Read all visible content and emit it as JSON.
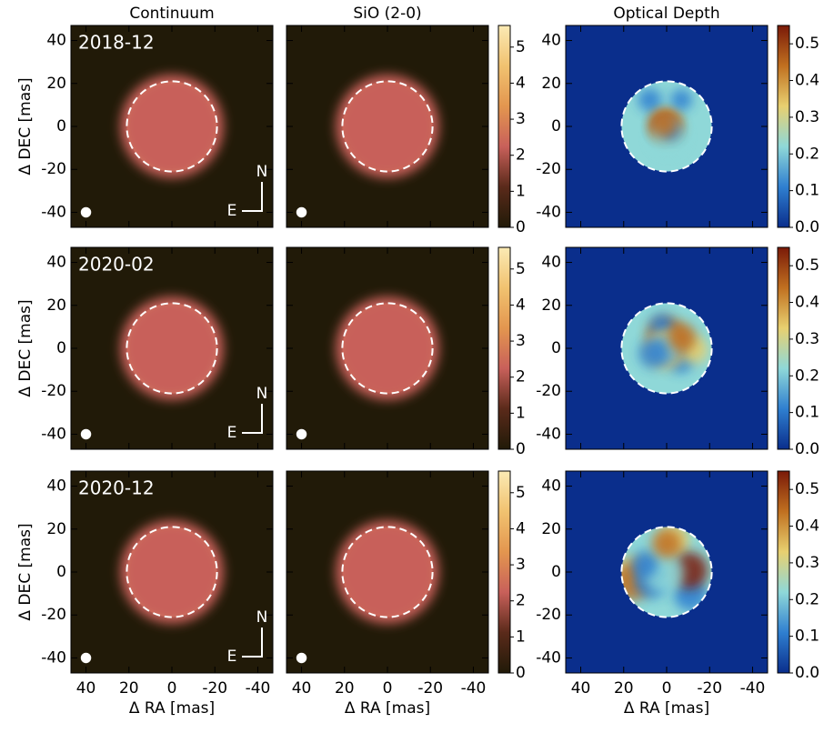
{
  "chart_data": {
    "type": "image-grid",
    "xlabel": "Δ RA [mas]",
    "ylabel": "Δ DEC [mas]",
    "xlim": [
      47,
      -47
    ],
    "ylim": [
      -47,
      47
    ],
    "xticks": [
      40,
      20,
      0,
      -20,
      -40
    ],
    "yticks": [
      -40,
      -20,
      0,
      20,
      40
    ],
    "disk_radius": 21,
    "beam": {
      "x": 40,
      "y": -40,
      "diameter": 4
    },
    "compass": [
      "N",
      "E"
    ],
    "rows": [
      {
        "epoch": "2018-12"
      },
      {
        "epoch": "2020-02"
      },
      {
        "epoch": "2020-12"
      }
    ],
    "columns": [
      {
        "title": "Continuum",
        "cmap": [
          "#211a08",
          "#5a2a1a",
          "#c8605a",
          "#e3964f",
          "#f1c270",
          "#fbeab4"
        ]
      },
      {
        "title": "SiO (2-0)",
        "cmap": [
          "#211a08",
          "#5a2a1a",
          "#c8605a",
          "#e3964f",
          "#f1c270",
          "#fbeab4"
        ],
        "colorbar": {
          "lim": [
            0,
            5.6
          ],
          "ticks": [
            0,
            1,
            2,
            3,
            4,
            5
          ]
        }
      },
      {
        "title": "Optical Depth",
        "cmap": [
          "#0a2e8c",
          "#2f7fd0",
          "#8fd8d8",
          "#e8d070",
          "#c07020",
          "#7a1a08"
        ],
        "colorbar": {
          "lim": [
            0,
            0.55
          ],
          "ticks": [
            {
              "value": 0,
              "label": "0.0"
            },
            0.1,
            0.2,
            0.3,
            0.4,
            0.5
          ]
        }
      }
    ]
  }
}
